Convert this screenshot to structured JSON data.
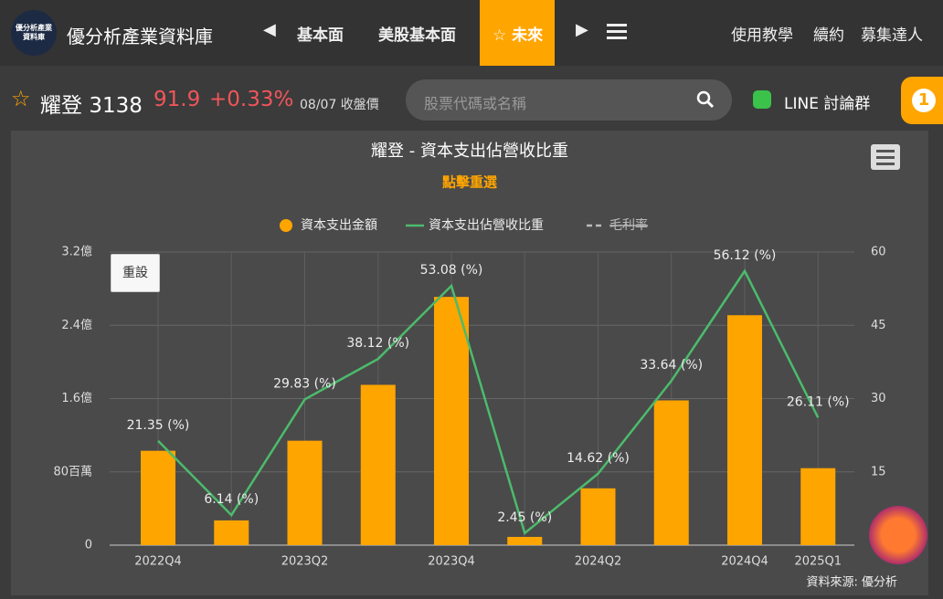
{
  "header": {
    "logo_text": "優分析產業資料庫",
    "site_title": "優分析產業資料庫",
    "nav": [
      "基本面",
      "美股基本面",
      "未來"
    ],
    "right_nav": [
      "使用教學",
      "續約",
      "募集達人"
    ]
  },
  "stock": {
    "name": "耀登",
    "code": "3138",
    "price": "91.9",
    "change": "+0.33%",
    "date_note": "08/07 收盤價"
  },
  "search": {
    "placeholder": "股票代碼或名稱"
  },
  "line_group": "LINE 討論群",
  "badge": "1",
  "chart_data": {
    "type": "bar_line",
    "title": "耀登 - 資本支出佔營收比重",
    "subtitle": "點擊重選",
    "reset_button": "重設",
    "source": "資料來源: 優分析",
    "categories": [
      "2022Q4",
      null,
      "2023Q2",
      null,
      "2023Q4",
      null,
      "2024Q2",
      null,
      "2024Q4",
      "2025Q1"
    ],
    "series": [
      {
        "name": "資本支出金額",
        "type": "bar",
        "color": "#ffa500",
        "values": [
          1.03,
          0.27,
          1.14,
          1.75,
          2.71,
          0.09,
          0.62,
          1.58,
          2.51,
          0.84
        ]
      },
      {
        "name": "資本支出佔營收比重",
        "type": "line",
        "axis": "y2",
        "color": "#4cbb6c",
        "values": [
          21.35,
          6.14,
          29.83,
          38.12,
          53.08,
          2.45,
          14.62,
          33.64,
          56.12,
          26.11
        ],
        "value_labels": [
          "21.35 (%)",
          "6.14 (%)",
          "29.83 (%)",
          "38.12 (%)",
          "53.08 (%)",
          "2.45 (%)",
          "14.62 (%)",
          "33.64 (%)",
          "56.12 (%)",
          "26.11 (%)"
        ]
      },
      {
        "name": "毛利率",
        "type": "line",
        "color": "#cccccc",
        "hidden": true,
        "values": [
          null,
          null,
          null,
          null,
          null,
          null,
          null,
          null,
          null,
          null
        ]
      }
    ],
    "ylim": [
      0,
      3.2
    ],
    "yticks": [
      0,
      {
        "value": 0.8,
        "label": "80百萬"
      },
      {
        "value": 1.6,
        "label": "1.6億"
      },
      {
        "value": 2.4,
        "label": "2.4億"
      },
      {
        "value": 3.2,
        "label": "3.2億"
      }
    ],
    "y2lim": [
      0,
      60
    ],
    "y2ticks": [
      0,
      15,
      30,
      45,
      60
    ],
    "grid": true
  }
}
